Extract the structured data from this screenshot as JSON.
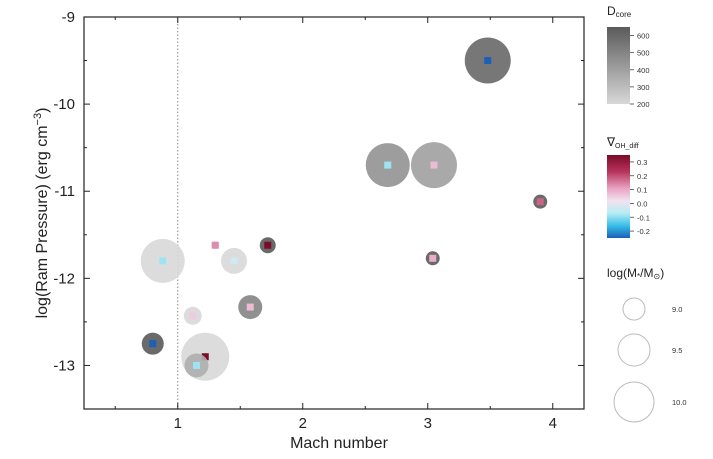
{
  "chart_data": {
    "type": "scatter",
    "xlabel": "Mach number",
    "ylabel": "log(Ram Pressure) (erg cm",
    "ylabel_sup": "−3",
    "ylabel_close": ")",
    "xlim": [
      0.25,
      4.25
    ],
    "ylim": [
      -13.5,
      -9
    ],
    "xticks": [
      "1",
      "2",
      "3",
      "4"
    ],
    "yticks": [
      "-9",
      "-10",
      "-11",
      "-12",
      "-13"
    ],
    "reference_line_x": 1,
    "points": [
      {
        "mach": 3.48,
        "log_ram_pressure": -9.5,
        "log_mass": 9.9,
        "d_core": 600,
        "grad_oh_diff": -0.2
      },
      {
        "mach": 2.68,
        "log_ram_pressure": -10.7,
        "log_mass": 9.85,
        "d_core": 450,
        "grad_oh_diff": -0.05
      },
      {
        "mach": 3.05,
        "log_ram_pressure": -10.7,
        "log_mass": 9.9,
        "d_core": 400,
        "grad_oh_diff": 0.1
      },
      {
        "mach": 3.9,
        "log_ram_pressure": -11.12,
        "log_mass": 9.1,
        "d_core": 650,
        "grad_oh_diff": 0.18
      },
      {
        "mach": 3.04,
        "log_ram_pressure": -11.77,
        "log_mass": 9.1,
        "d_core": 650,
        "grad_oh_diff": 0.12
      },
      {
        "mach": 1.3,
        "log_ram_pressure": -11.62,
        "log_mass": 8.95,
        "d_core": 200,
        "grad_oh_diff": 0.15
      },
      {
        "mach": 1.72,
        "log_ram_pressure": -11.62,
        "log_mass": 9.15,
        "d_core": 650,
        "grad_oh_diff": 0.3
      },
      {
        "mach": 1.45,
        "log_ram_pressure": -11.8,
        "log_mass": 9.4,
        "d_core": 200,
        "grad_oh_diff": 0.0
      },
      {
        "mach": 0.88,
        "log_ram_pressure": -11.8,
        "log_mass": 9.85,
        "d_core": 200,
        "grad_oh_diff": -0.05
      },
      {
        "mach": 1.58,
        "log_ram_pressure": -12.33,
        "log_mass": 9.35,
        "d_core": 500,
        "grad_oh_diff": 0.1
      },
      {
        "mach": 1.12,
        "log_ram_pressure": -12.43,
        "log_mass": 9.2,
        "d_core": 200,
        "grad_oh_diff": 0.08
      },
      {
        "mach": 0.8,
        "log_ram_pressure": -12.75,
        "log_mass": 9.3,
        "d_core": 650,
        "grad_oh_diff": -0.2
      },
      {
        "mach": 1.22,
        "log_ram_pressure": -12.9,
        "log_mass": 9.95,
        "d_core": 200,
        "grad_oh_diff": 0.3
      },
      {
        "mach": 1.15,
        "log_ram_pressure": -13.0,
        "log_mass": 9.35,
        "d_core": 350,
        "grad_oh_diff": -0.05
      }
    ],
    "legend_dcore": {
      "title": "D",
      "title_sub": "core",
      "ticks": [
        "600",
        "500",
        "400",
        "300",
        "200"
      ],
      "colors": [
        "#5a5a5a",
        "#d8d8d8"
      ]
    },
    "legend_grad": {
      "title": "∇",
      "title_sub": "OH_diff",
      "ticks": [
        "0.3",
        "0.2",
        "0.1",
        "0.0",
        "-0.1",
        "-0.2"
      ],
      "colors": [
        "#7a0c2a",
        "#b8325a",
        "#e8a2c2",
        "#f2e2ee",
        "#b8ecf4",
        "#38bfe8",
        "#1b5fb8"
      ]
    },
    "legend_mass": {
      "title_pre": "log(M",
      "title_sub": "*",
      "title_mid": "/M",
      "title_sub2": "⊙",
      "title_post": ")",
      "entries": [
        "9.0",
        "9.5",
        "10.0"
      ]
    }
  }
}
